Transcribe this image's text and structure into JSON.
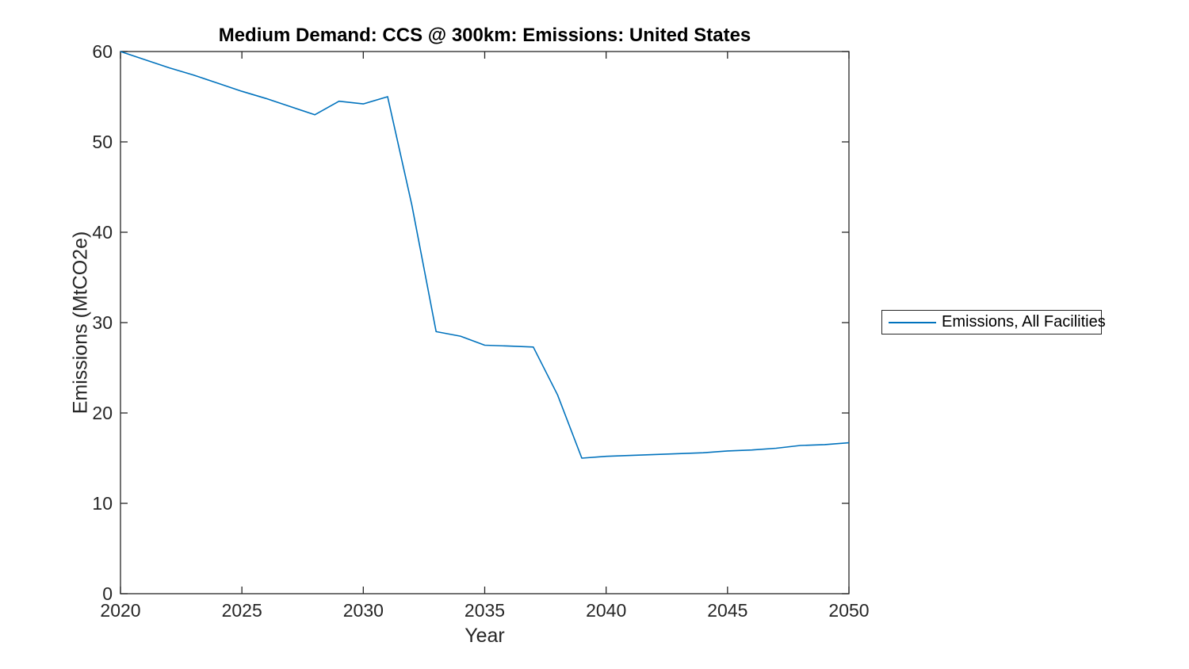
{
  "title": "Medium Demand: CCS @ 300km: Emissions: United States",
  "colors": {
    "line": "#0072BD",
    "axis": "#262626",
    "background": "#ffffff"
  },
  "legend": {
    "entries": [
      {
        "label": "Emissions, All Facilities",
        "color": "#0072BD"
      }
    ],
    "position": "outside-right"
  },
  "chart_data": {
    "type": "line",
    "title": "Medium Demand: CCS @ 300km: Emissions: United States",
    "xlabel": "Year",
    "ylabel": "Emissions (MtCO2e)",
    "xlim": [
      2020,
      2050
    ],
    "ylim": [
      0,
      60
    ],
    "xticks": [
      2020,
      2025,
      2030,
      2035,
      2040,
      2045,
      2050
    ],
    "yticks": [
      0,
      10,
      20,
      30,
      40,
      50,
      60
    ],
    "grid": false,
    "box": true,
    "legend_position": "outside-right",
    "series": [
      {
        "name": "Emissions, All Facilities",
        "color": "#0072BD",
        "x": [
          2020,
          2021,
          2022,
          2023,
          2024,
          2025,
          2026,
          2027,
          2028,
          2029,
          2030,
          2031,
          2032,
          2033,
          2034,
          2035,
          2036,
          2037,
          2038,
          2039,
          2040,
          2041,
          2042,
          2043,
          2044,
          2045,
          2046,
          2047,
          2048,
          2049,
          2050
        ],
        "y": [
          60,
          59.1,
          58.2,
          57.4,
          56.5,
          55.6,
          54.8,
          53.9,
          53,
          54.5,
          54.2,
          55,
          43,
          29,
          28.5,
          27.5,
          27.4,
          27.3,
          22,
          15,
          15.2,
          15.3,
          15.4,
          15.5,
          15.6,
          15.8,
          15.9,
          16.1,
          16.4,
          16.5,
          16.7
        ]
      }
    ]
  }
}
